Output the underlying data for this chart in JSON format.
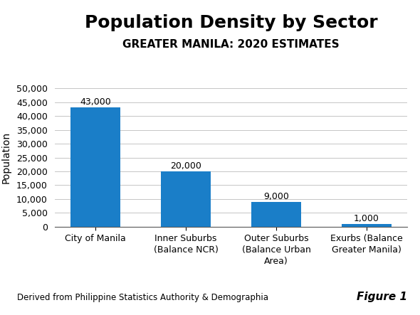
{
  "title": "Population Density by Sector",
  "subtitle": "GREATER MANILA: 2020 ESTIMATES",
  "categories": [
    "City of Manila",
    "Inner Suburbs\n(Balance NCR)",
    "Outer Suburbs\n(Balance Urban\nArea)",
    "Exurbs (Balance\nGreater Manila)"
  ],
  "values": [
    43000,
    20000,
    9000,
    1000
  ],
  "bar_labels": [
    "43,000",
    "20,000",
    "9,000",
    "1,000"
  ],
  "bar_color": "#1A7EC8",
  "ylabel": "Population",
  "ylim": [
    0,
    50000
  ],
  "yticks": [
    0,
    5000,
    10000,
    15000,
    20000,
    25000,
    30000,
    35000,
    40000,
    45000,
    50000
  ],
  "footnote": "Derived from Philippine Statistics Authority & Demographia",
  "figure_label": "Figure 1",
  "bg_color": "#FFFFFF",
  "grid_color": "#BBBBBB",
  "title_fontsize": 18,
  "subtitle_fontsize": 11,
  "ylabel_fontsize": 10,
  "tick_fontsize": 9,
  "bar_label_fontsize": 9,
  "footnote_fontsize": 8.5,
  "figure_label_fontsize": 11
}
